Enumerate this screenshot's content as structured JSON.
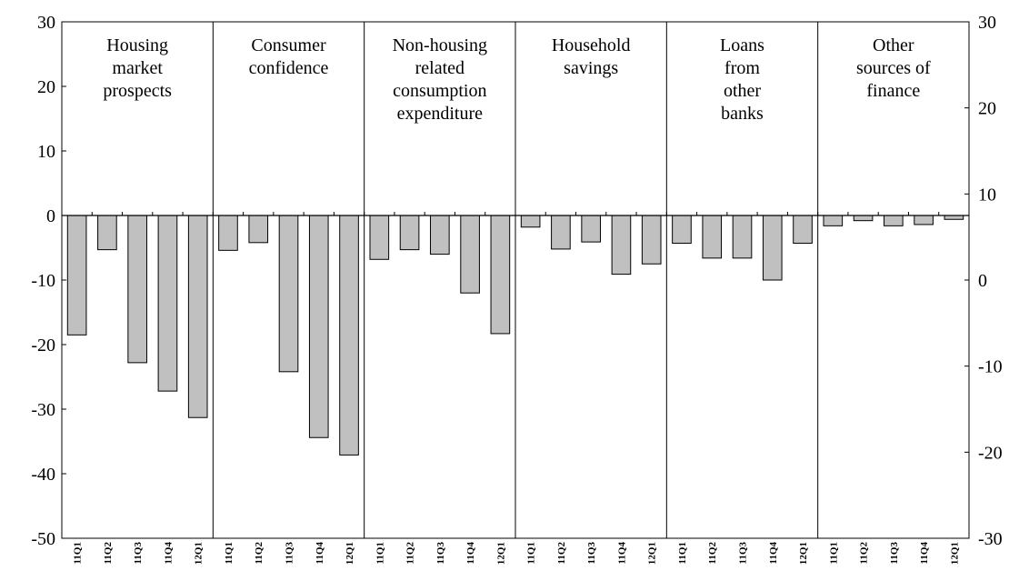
{
  "chart_data": {
    "type": "bar",
    "title": "",
    "xlabel": "",
    "ylabel": "",
    "ylim": [
      -50,
      30
    ],
    "y_ticks": [
      "30",
      "20",
      "10",
      "0",
      "-10",
      "-20",
      "-30",
      "-40",
      "-50"
    ],
    "ylim_right": [
      -30,
      30
    ],
    "y_ticks_right": [
      "30",
      "20",
      "10",
      "0",
      "-10",
      "-20",
      "-30"
    ],
    "grid": false,
    "legend": "none",
    "bar_color": "#c0c0c0",
    "categories": [
      "11Q1",
      "11Q2",
      "11Q3",
      "11Q4",
      "12Q1"
    ],
    "groups": [
      {
        "label_lines": [
          "Housing",
          "market",
          "prospects"
        ],
        "values": [
          -18.5,
          -5.3,
          -22.8,
          -27.2,
          -31.3
        ]
      },
      {
        "label_lines": [
          "Consumer",
          "confidence"
        ],
        "values": [
          -5.4,
          -4.2,
          -24.2,
          -34.4,
          -37.1
        ]
      },
      {
        "label_lines": [
          "Non-housing",
          "related",
          "consumption",
          "expenditure"
        ],
        "values": [
          -6.8,
          -5.3,
          -6.0,
          -12.0,
          -18.3
        ]
      },
      {
        "label_lines": [
          "Household",
          "savings"
        ],
        "values": [
          -1.8,
          -5.2,
          -4.1,
          -9.1,
          -7.5
        ]
      },
      {
        "label_lines": [
          "Loans",
          "from",
          "other",
          "banks"
        ],
        "values": [
          -4.3,
          -6.6,
          -6.6,
          -10.0,
          -4.3
        ]
      },
      {
        "label_lines": [
          "Other",
          "sources of",
          "finance"
        ],
        "values": [
          -1.6,
          -0.8,
          -1.6,
          -1.4,
          -0.6
        ]
      }
    ]
  }
}
